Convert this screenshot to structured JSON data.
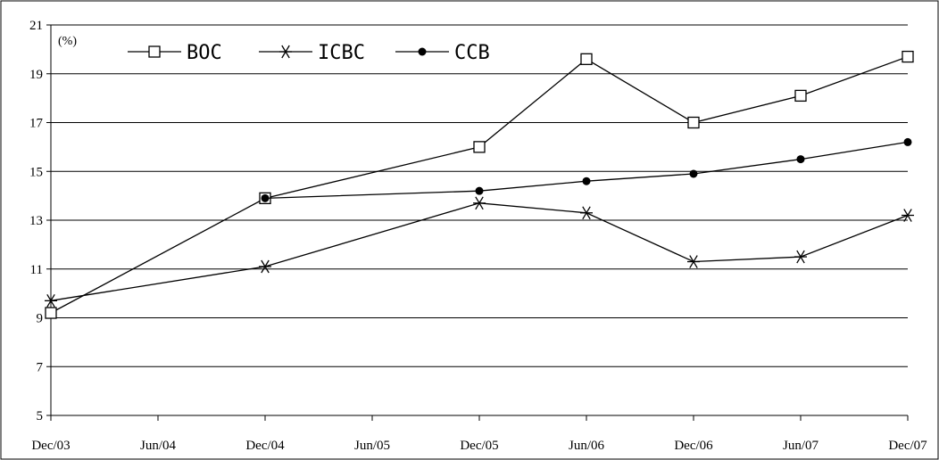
{
  "chart_data": {
    "type": "line",
    "unit_label": "(%)",
    "categories": [
      "Dec/03",
      "Jun/04",
      "Dec/04",
      "Jun/05",
      "Dec/05",
      "Jun/06",
      "Dec/06",
      "Jun/07",
      "Dec/07"
    ],
    "y_ticks": [
      "5",
      "7",
      "9",
      "11",
      "13",
      "15",
      "17",
      "19",
      "21"
    ],
    "ylim": [
      5,
      21
    ],
    "grid": true,
    "legend_position": "top-left",
    "series": [
      {
        "name": "BOC",
        "marker": "square-open",
        "values": [
          9.2,
          null,
          13.9,
          null,
          16.0,
          19.6,
          17.0,
          18.1,
          19.7
        ]
      },
      {
        "name": "ICBC",
        "marker": "star",
        "values": [
          9.7,
          null,
          11.1,
          null,
          13.7,
          13.3,
          11.3,
          11.5,
          13.2
        ]
      },
      {
        "name": "CCB",
        "marker": "dot-filled",
        "values": [
          null,
          null,
          13.9,
          null,
          14.2,
          14.6,
          14.9,
          15.5,
          16.2
        ]
      }
    ]
  }
}
